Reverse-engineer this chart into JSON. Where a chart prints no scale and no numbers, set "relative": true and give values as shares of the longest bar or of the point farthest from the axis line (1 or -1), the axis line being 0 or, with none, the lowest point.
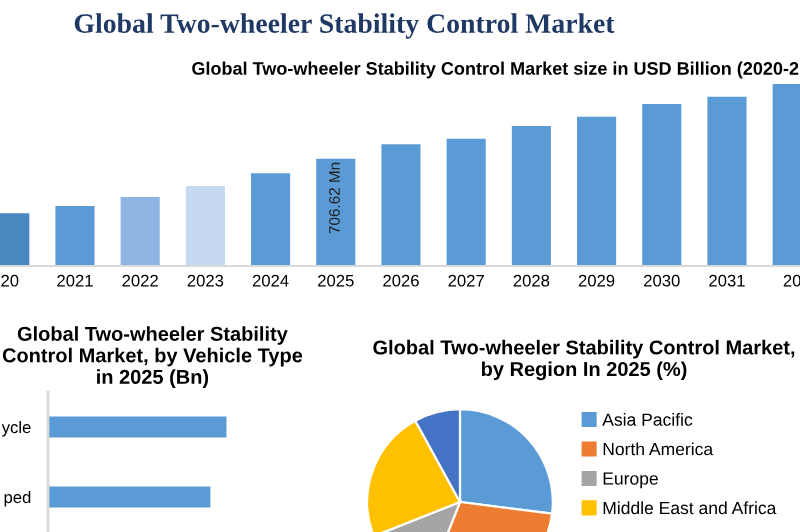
{
  "chart_data": [
    {
      "type": "bar",
      "title": "Global Two-wheeler Stability Control Market",
      "subtitle": "Global Two-wheeler Stability Control Market size in USD Billion (2020-2",
      "categories": [
        "20",
        "2021",
        "2022",
        "2023",
        "2024",
        "2025",
        "2026",
        "2027",
        "2028",
        "2029",
        "2030",
        "2031",
        "20"
      ],
      "values": [
        347,
        395,
        455,
        527,
        611,
        706.62,
        802,
        838,
        922,
        982,
        1066,
        1114,
        1198
      ],
      "colors": [
        "#4a86c0",
        "#5b9bd5",
        "#8eb4e3",
        "#c5d9f1",
        "#5b9bd5",
        "#5b9bd5",
        "#5b9bd5",
        "#5b9bd5",
        "#5b9bd5",
        "#5b9bd5",
        "#5b9bd5",
        "#5b9bd5",
        "#5b9bd5"
      ],
      "value_labels": [
        null,
        null,
        null,
        null,
        null,
        "706.62 Mn",
        null,
        null,
        null,
        null,
        null,
        null,
        null
      ],
      "grid": false
    },
    {
      "type": "bar",
      "orientation": "horizontal",
      "title": "Global Two-wheeler Stability Control Market, by Vehicle Type in 2025 (Bn)",
      "categories": [
        "ycle",
        "ped"
      ],
      "values": [
        1.0,
        0.91
      ],
      "color": "#5b9bd5",
      "relative": true,
      "grid": false
    },
    {
      "type": "pie",
      "title": "Global Two-wheeler Stability Control Market, by Region In 2025 (%)",
      "categories": [
        "Asia Pacific",
        "North America",
        "Europe",
        "Middle East and Africa",
        null
      ],
      "values": [
        27,
        29,
        13,
        23,
        8
      ],
      "colors": [
        "#5b9bd5",
        "#ed7d31",
        "#a5a5a5",
        "#ffc000",
        "#4472c4"
      ],
      "legend": "right"
    }
  ]
}
